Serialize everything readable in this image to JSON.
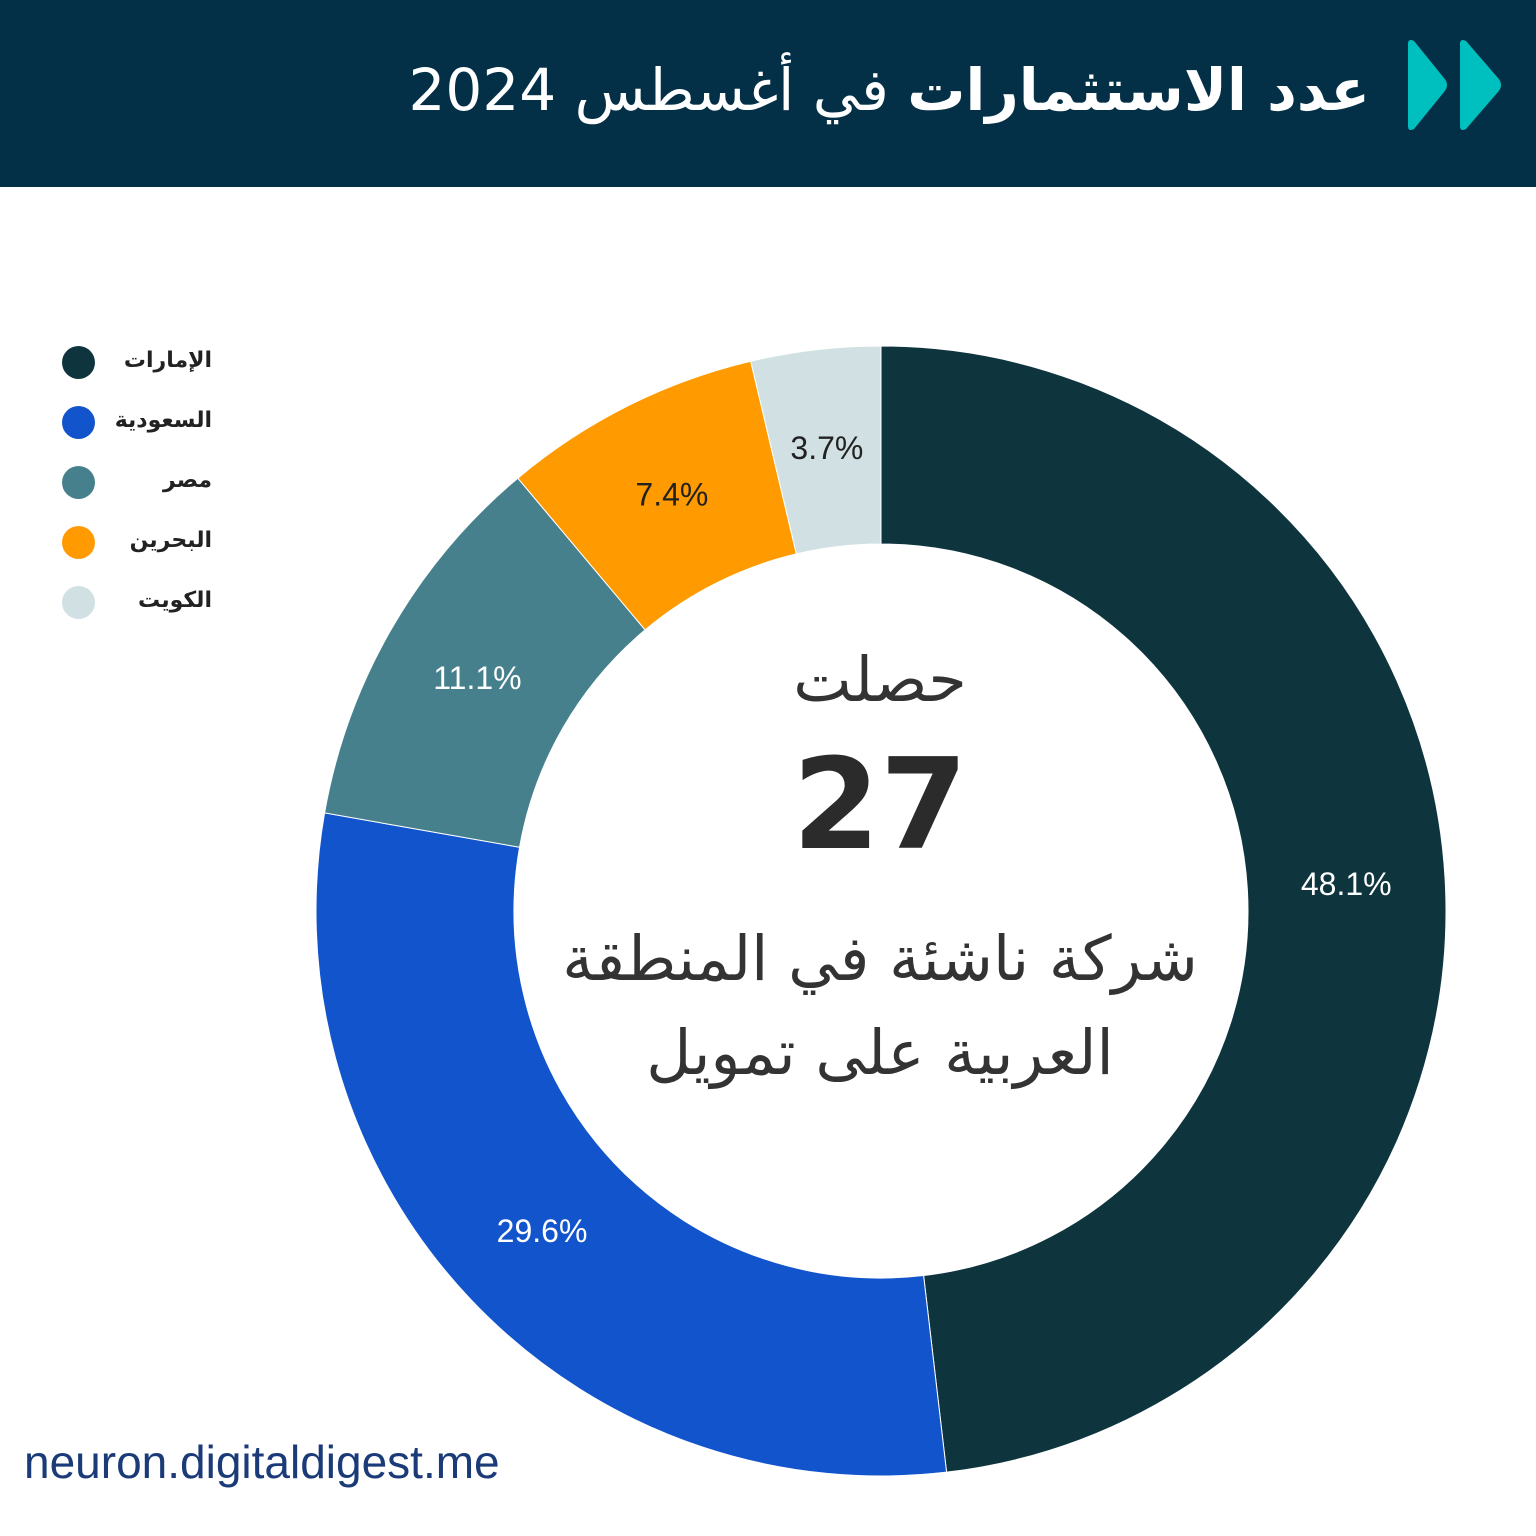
{
  "header": {
    "title_bold": "عدد الاستثمارات",
    "title_rest": "في أغسطس 2024",
    "logo_icon": "double-play-icon",
    "background": "#043047",
    "logo_color": "#00bfbf"
  },
  "center": {
    "line1": "حصلت",
    "number": "27",
    "line2": "شركة ناشئة في المنطقة العربية على تمويل"
  },
  "footer": {
    "url": "neuron.digitaldigest.me"
  },
  "chart_data": {
    "type": "pie",
    "donut": true,
    "legend_position": "top-left",
    "slices": [
      {
        "label": "الإمارات",
        "value": 48.1,
        "display": "48.1%",
        "color": "#0e353e",
        "text_color": "#ffffff"
      },
      {
        "label": "السعودية",
        "value": 29.6,
        "display": "29.6%",
        "color": "#1254cc",
        "text_color": "#ffffff"
      },
      {
        "label": "مصر",
        "value": 11.1,
        "display": "11.1%",
        "color": "#47808d",
        "text_color": "#ffffff"
      },
      {
        "label": "البحرين",
        "value": 7.4,
        "display": "7.4%",
        "color": "#ff9a00",
        "text_color": "#222222"
      },
      {
        "label": "الكويت",
        "value": 3.7,
        "display": "3.7%",
        "color": "#d0e0e3",
        "text_color": "#222222"
      }
    ]
  }
}
